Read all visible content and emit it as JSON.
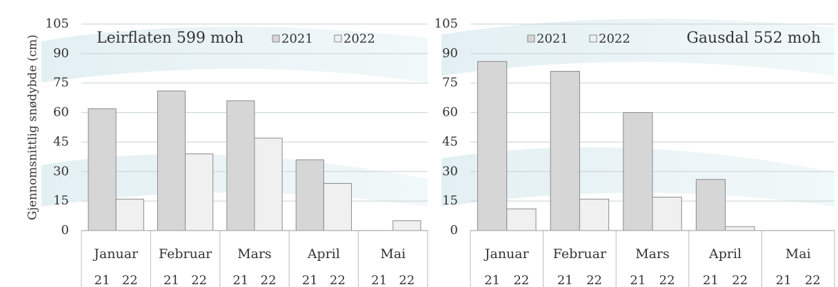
{
  "chart_data": [
    {
      "type": "bar",
      "title": "Leirflaten 599 moh",
      "y_label": "Gjennomsnittlig snødybde (cm)",
      "categories": [
        "Januar",
        "Februar",
        "Mars",
        "April",
        "Mai"
      ],
      "bar_labels": [
        "21",
        "22"
      ],
      "series": [
        {
          "name": "2021",
          "color": "#d6d6d6",
          "values": [
            62,
            71,
            66,
            36,
            0
          ]
        },
        {
          "name": "2022",
          "color": "#f0f0f0",
          "values": [
            16,
            39,
            47,
            24,
            5
          ]
        }
      ],
      "ylim": [
        0,
        105
      ],
      "yticks": [
        0,
        15,
        30,
        45,
        60,
        75,
        90,
        105
      ],
      "grid": true
    },
    {
      "type": "bar",
      "title": "Gausdal 552 moh",
      "categories": [
        "Januar",
        "Februar",
        "Mars",
        "April",
        "Mai"
      ],
      "bar_labels": [
        "21",
        "22"
      ],
      "series": [
        {
          "name": "2021",
          "color": "#d6d6d6",
          "values": [
            86,
            81,
            60,
            26,
            0
          ]
        },
        {
          "name": "2022",
          "color": "#f0f0f0",
          "values": [
            11,
            16,
            17,
            2,
            0
          ]
        }
      ],
      "ylim": [
        0,
        105
      ],
      "yticks": [
        0,
        15,
        30,
        45,
        60,
        75,
        90,
        105
      ],
      "grid": true
    }
  ]
}
